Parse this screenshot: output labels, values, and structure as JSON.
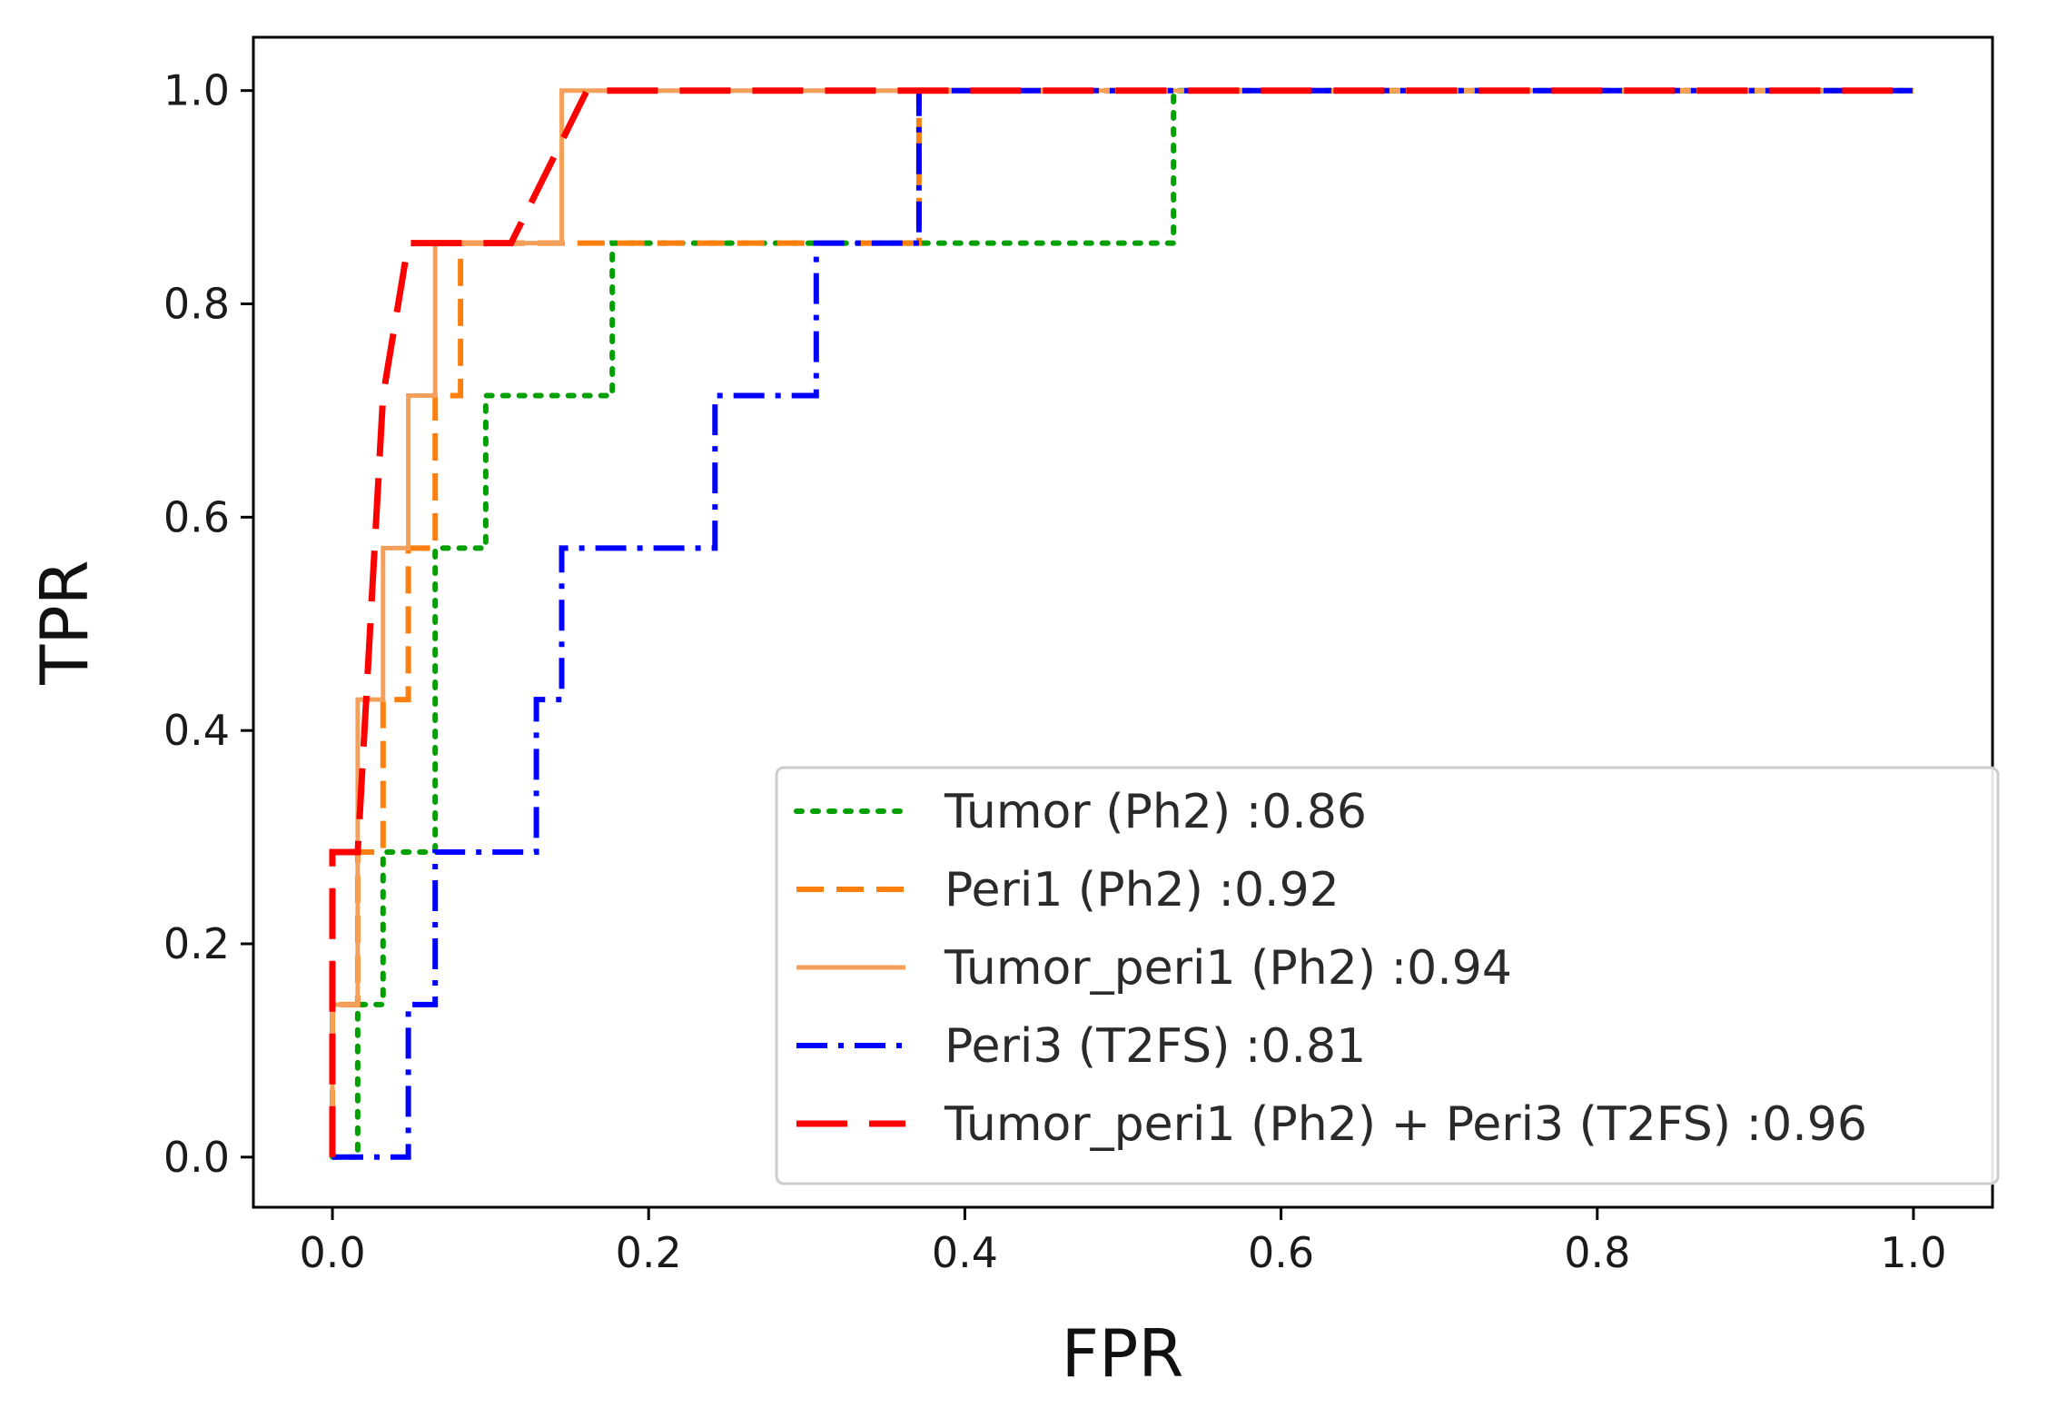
{
  "chart_data": {
    "type": "line",
    "title": "",
    "xlabel": "FPR",
    "ylabel": "TPR",
    "xlim": [
      -0.05,
      1.05
    ],
    "ylim": [
      -0.047,
      1.05
    ],
    "xticks": [
      0.0,
      0.2,
      0.4,
      0.6,
      0.8,
      1.0
    ],
    "xtick_labels": [
      "0.0",
      "0.2",
      "0.4",
      "0.6",
      "0.8",
      "1.0"
    ],
    "yticks": [
      0.0,
      0.2,
      0.4,
      0.6,
      0.8,
      1.0
    ],
    "ytick_labels": [
      "0.0",
      "0.2",
      "0.4",
      "0.6",
      "0.8",
      "1.0"
    ],
    "grid": false,
    "legend_position": "lower-right",
    "series": [
      {
        "name": "Tumor (Ph2) :0.86",
        "color": "#00a000",
        "style": "dotted",
        "x": [
          0.0,
          0.0,
          0.016,
          0.016,
          0.032,
          0.032,
          0.065,
          0.065,
          0.097,
          0.097,
          0.177,
          0.177,
          0.532,
          0.532,
          1.0
        ],
        "y": [
          0.0,
          0.0,
          0.0,
          0.143,
          0.143,
          0.286,
          0.286,
          0.571,
          0.571,
          0.714,
          0.714,
          0.857,
          0.857,
          1.0,
          1.0
        ]
      },
      {
        "name": "Peri1 (Ph2) :0.92",
        "color": "#ff7f0e",
        "style": "dashed",
        "x": [
          0.0,
          0.0,
          0.016,
          0.016,
          0.032,
          0.032,
          0.048,
          0.048,
          0.065,
          0.065,
          0.081,
          0.081,
          0.371,
          0.371,
          1.0
        ],
        "y": [
          0.0,
          0.143,
          0.143,
          0.286,
          0.286,
          0.429,
          0.429,
          0.571,
          0.571,
          0.714,
          0.714,
          0.857,
          0.857,
          1.0,
          1.0
        ]
      },
      {
        "name": "Tumor_peri1 (Ph2) :0.94",
        "color": "#f5a05a",
        "style": "solid",
        "x": [
          0.0,
          0.0,
          0.016,
          0.016,
          0.032,
          0.032,
          0.048,
          0.048,
          0.065,
          0.065,
          0.097,
          0.097,
          0.145,
          0.145,
          1.0
        ],
        "y": [
          0.0,
          0.143,
          0.143,
          0.429,
          0.429,
          0.571,
          0.571,
          0.714,
          0.714,
          0.857,
          0.857,
          0.857,
          0.857,
          1.0,
          1.0
        ]
      },
      {
        "name": "Peri3 (T2FS) :0.81",
        "color": "#0000ff",
        "style": "dashdot",
        "x": [
          0.0,
          0.048,
          0.048,
          0.065,
          0.065,
          0.129,
          0.129,
          0.145,
          0.145,
          0.242,
          0.242,
          0.306,
          0.306,
          0.371,
          0.371,
          1.0
        ],
        "y": [
          0.0,
          0.0,
          0.143,
          0.143,
          0.286,
          0.286,
          0.429,
          0.429,
          0.571,
          0.571,
          0.714,
          0.714,
          0.857,
          0.857,
          1.0,
          1.0
        ]
      },
      {
        "name": "Tumor_peri1 (Ph2) + Peri3 (T2FS) :0.96",
        "color": "#ff0000",
        "style": "longdash",
        "x": [
          0.0,
          0.0,
          0.016,
          0.032,
          0.048,
          0.113,
          0.161,
          1.0
        ],
        "y": [
          0.0,
          0.286,
          0.286,
          0.714,
          0.857,
          0.857,
          1.0,
          1.0
        ]
      }
    ]
  }
}
